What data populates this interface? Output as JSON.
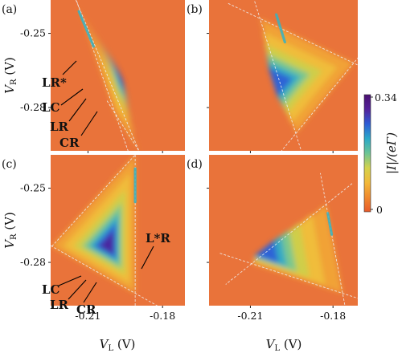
{
  "chart_data": {
    "type": "heatmap",
    "panel_labels": [
      "(a)",
      "(b)",
      "(c)",
      "(d)"
    ],
    "xlabel": {
      "symbol": "V",
      "subscript": "L",
      "unit": "(V)"
    },
    "ylabel": {
      "symbol": "V",
      "subscript": "R",
      "unit": "(V)"
    },
    "x_tick_labels": [
      "-0.21",
      "-0.18"
    ],
    "y_tick_labels": [
      "-0.25",
      "-0.28"
    ],
    "x_ticks": [
      -0.21,
      -0.18
    ],
    "y_ticks": [
      -0.25,
      -0.28
    ],
    "xlim": [
      -0.225,
      -0.171
    ],
    "ylim": [
      -0.2975,
      -0.2365
    ],
    "colorbar": {
      "label": "|I|/(eΓ)",
      "ticks": [
        "0.34",
        "0"
      ],
      "range": [
        0,
        0.34
      ],
      "colors": [
        "#e85a2a",
        "#f08a2e",
        "#f2b93a",
        "#d3d24c",
        "#6cc494",
        "#2aa8c8",
        "#2c5cd6",
        "#53229a",
        "#4a1070"
      ]
    },
    "background_color": "#e9733a",
    "panels": [
      {
        "label": "(a)",
        "annotations": [
          "LR*",
          "LC",
          "LR",
          "CR"
        ],
        "triangle": [
          [
            -0.214,
            -0.2385
          ],
          [
            -0.199,
            -0.2825
          ],
          [
            -0.1895,
            -0.2975
          ]
        ],
        "peak": {
          "x": -0.196,
          "y": -0.266,
          "value": 0.34
        }
      },
      {
        "label": "(b)",
        "annotations": [],
        "triangle": [
          [
            -0.2065,
            -0.244
          ],
          [
            -0.1935,
            -0.2905
          ],
          [
            -0.1725,
            -0.262
          ]
        ],
        "peak": {
          "x": -0.2025,
          "y": -0.2705,
          "value": 0.3
        }
      },
      {
        "label": "(c)",
        "annotations": [
          "L*R",
          "LC",
          "LR",
          "CR"
        ],
        "triangle": [
          [
            -0.2245,
            -0.2735
          ],
          [
            -0.191,
            -0.2925
          ],
          [
            -0.191,
            -0.2365
          ]
        ],
        "peak": {
          "x": -0.2015,
          "y": -0.2735,
          "value": 0.34
        }
      },
      {
        "label": "(d)",
        "annotations": [],
        "triangle": [
          [
            -0.2095,
            -0.2805
          ],
          [
            -0.1765,
            -0.2925
          ],
          [
            -0.1825,
            -0.2565
          ]
        ],
        "peak": {
          "x": -0.208,
          "y": -0.276,
          "value": 0.32
        }
      }
    ]
  }
}
